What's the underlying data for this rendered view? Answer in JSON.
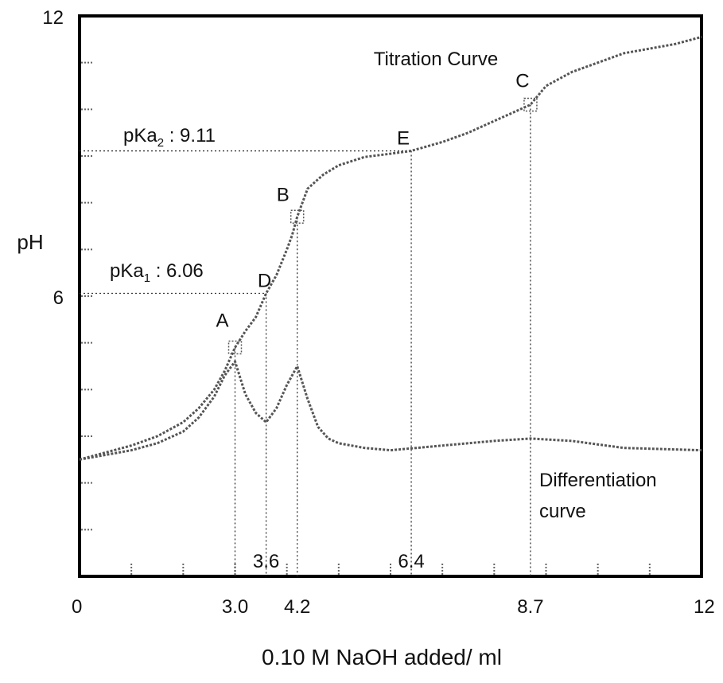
{
  "chart_data": {
    "type": "line",
    "title": "Titration Curve",
    "xlabel": "0.10 M NaOH added/ ml",
    "ylabel": "pH",
    "xlim": [
      0,
      12
    ],
    "ylim": [
      0,
      12
    ],
    "x_ticks": [
      {
        "value": 0,
        "label": "0"
      },
      {
        "value": 3.0,
        "label": "3.0"
      },
      {
        "value": 4.2,
        "label": "4.2"
      },
      {
        "value": 8.7,
        "label": "8.7"
      },
      {
        "value": 12,
        "label": "12"
      }
    ],
    "y_ticks": [
      {
        "value": 12,
        "label": "12"
      },
      {
        "value": 6,
        "label": "6"
      }
    ],
    "series": [
      {
        "x": [
          0,
          0.5,
          1.0,
          1.5,
          2.0,
          2.3,
          2.6,
          2.8,
          3.0,
          3.2,
          3.4,
          3.6,
          3.8,
          4.0,
          4.1,
          4.2,
          4.4,
          4.7,
          5.0,
          5.5,
          6.0,
          6.4,
          7.0,
          7.5,
          8.0,
          8.4,
          8.7,
          9.0,
          9.5,
          10.0,
          10.5,
          11.0,
          11.5,
          12.0
        ],
        "y": [
          2.5,
          2.65,
          2.8,
          3.0,
          3.3,
          3.6,
          4.0,
          4.4,
          4.9,
          5.25,
          5.55,
          6.06,
          6.45,
          7.0,
          7.3,
          7.7,
          8.3,
          8.6,
          8.8,
          8.98,
          9.05,
          9.11,
          9.3,
          9.5,
          9.75,
          9.95,
          10.1,
          10.5,
          10.8,
          11.0,
          11.2,
          11.3,
          11.4,
          11.55
        ]
      },
      {
        "x": [
          0,
          0.5,
          1.0,
          1.5,
          2.0,
          2.3,
          2.6,
          2.8,
          3.0,
          3.2,
          3.4,
          3.6,
          3.8,
          4.0,
          4.2,
          4.4,
          4.6,
          4.8,
          5.0,
          5.5,
          6.0,
          6.5,
          7.0,
          7.5,
          8.0,
          8.7,
          9.5,
          10.5,
          12.0
        ],
        "y": [
          2.5,
          2.6,
          2.7,
          2.85,
          3.1,
          3.4,
          3.85,
          4.3,
          4.6,
          3.9,
          3.5,
          3.3,
          3.6,
          4.1,
          4.5,
          3.8,
          3.2,
          2.95,
          2.85,
          2.75,
          2.7,
          2.75,
          2.8,
          2.85,
          2.9,
          2.95,
          2.9,
          2.75,
          2.7
        ]
      }
    ],
    "markers": [
      {
        "label": "A",
        "x": 3.0,
        "y": 4.9
      },
      {
        "label": "B",
        "x": 4.2,
        "y": 7.7
      },
      {
        "label": "C",
        "x": 8.7,
        "y": 10.1
      },
      {
        "label": "D",
        "x": 3.6,
        "y": 6.06
      },
      {
        "label": "E",
        "x": 6.4,
        "y": 9.11
      }
    ],
    "vertical_markers": [
      {
        "x": 3.0,
        "label": ""
      },
      {
        "x": 3.6,
        "label": "3.6"
      },
      {
        "x": 4.2,
        "label": ""
      },
      {
        "x": 6.4,
        "label": "6.4"
      },
      {
        "x": 8.7,
        "label": ""
      }
    ],
    "annotations": [
      {
        "name": "pka1",
        "main": "pKa",
        "sub": "1",
        "rest": " : 6.06",
        "y": 6.06,
        "x_end": 3.6
      },
      {
        "name": "pka2",
        "main": "pKa",
        "sub": "2",
        "rest": " : 9.11",
        "y": 9.11,
        "x_end": 6.4
      },
      {
        "name": "diff-label",
        "lines": [
          "Differentiation",
          "curve"
        ]
      }
    ],
    "grid": false,
    "colors": {
      "curve": "#555555",
      "frame": "#000000",
      "guide": "#333333"
    }
  }
}
